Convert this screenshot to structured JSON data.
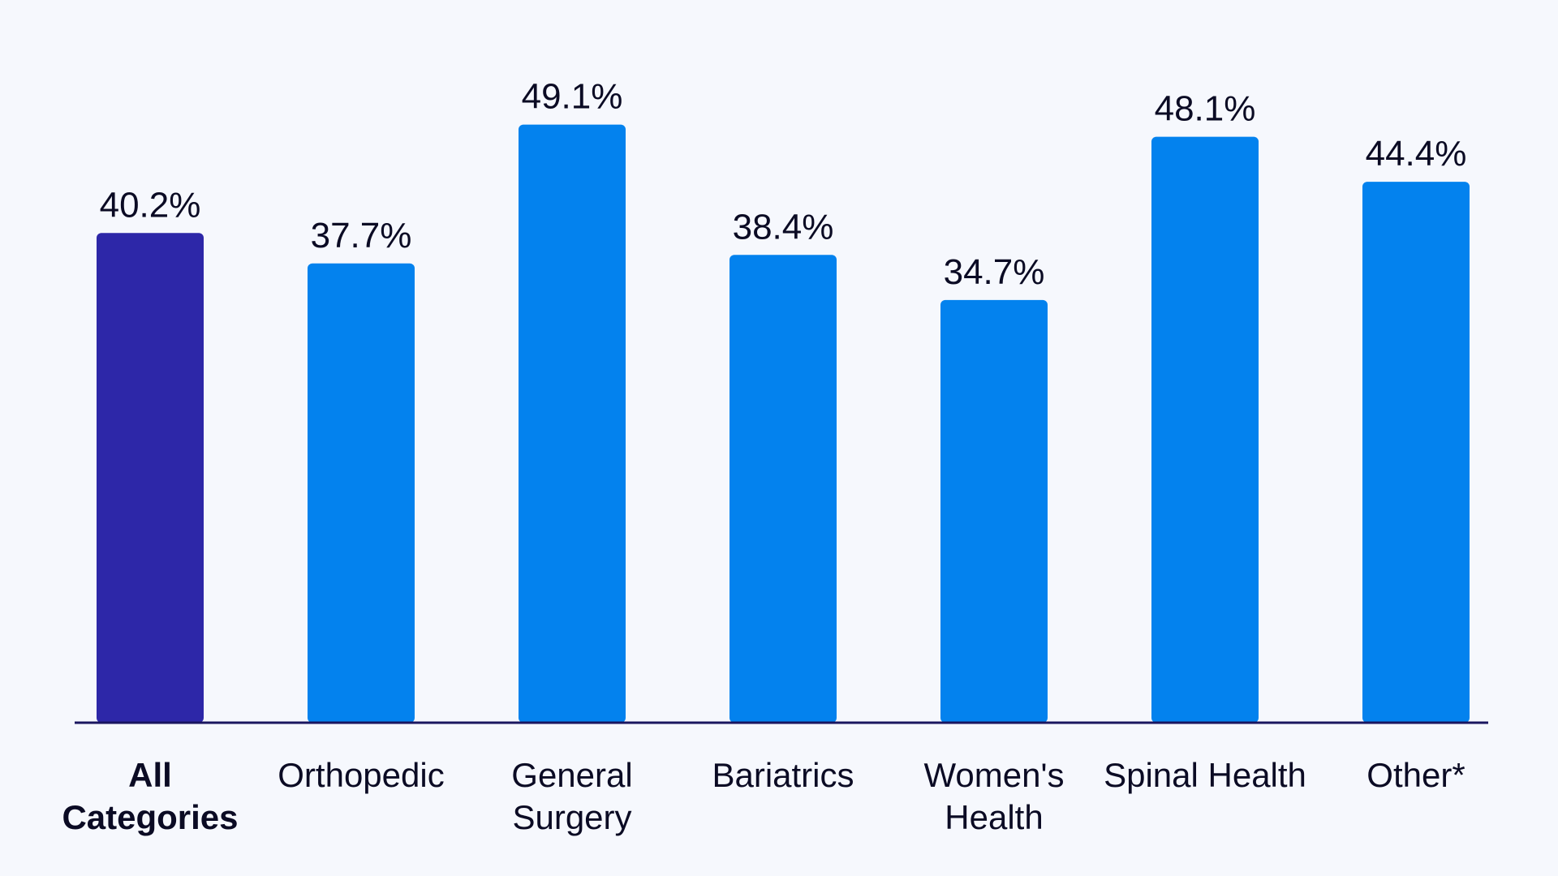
{
  "chart_data": {
    "type": "bar",
    "categories": [
      [
        "All",
        "Categories"
      ],
      [
        "Orthopedic"
      ],
      [
        "General",
        "Surgery"
      ],
      [
        "Bariatrics"
      ],
      [
        "Women's",
        "Health"
      ],
      [
        "Spinal Health"
      ],
      [
        "Other*"
      ]
    ],
    "values": [
      40.2,
      37.7,
      49.1,
      38.4,
      34.7,
      48.1,
      44.4
    ],
    "value_labels": [
      "40.2%",
      "37.7%",
      "49.1%",
      "38.4%",
      "34.7%",
      "48.1%",
      "44.4%"
    ],
    "highlight_index": 0,
    "ylim": [
      0,
      54
    ],
    "grid": false,
    "legend": "none",
    "colors": {
      "highlight": "#2d27a8",
      "bar": "#0382ee",
      "axis": "#1a1660",
      "text": "#0b0b24",
      "background": "#f6f8fd"
    }
  }
}
